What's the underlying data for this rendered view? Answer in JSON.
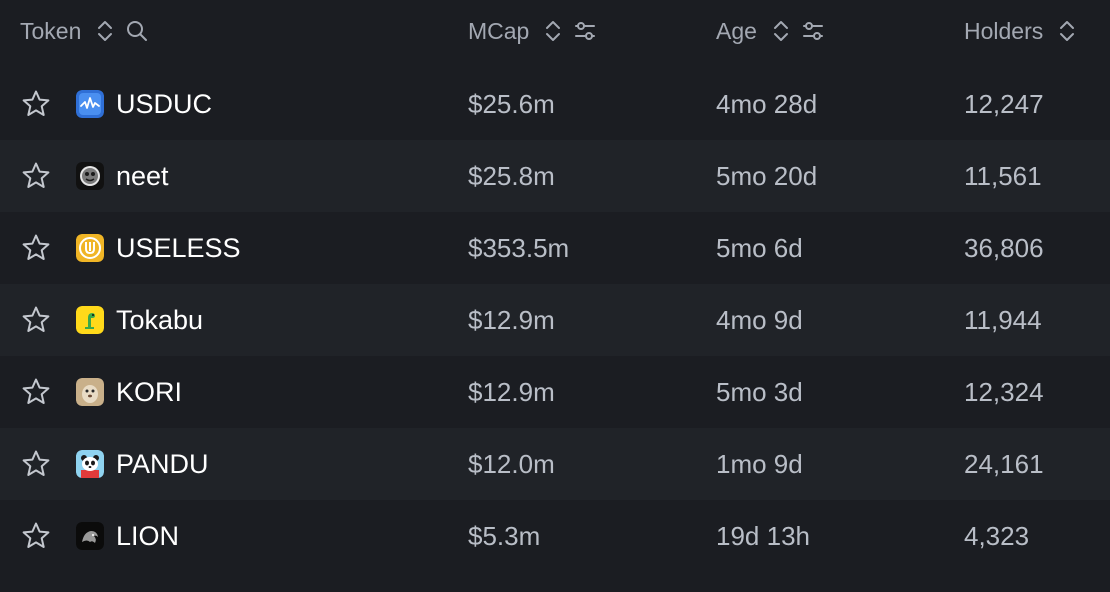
{
  "header": {
    "token_label": "Token",
    "mcap_label": "MCap",
    "age_label": "Age",
    "holders_label": "Holders"
  },
  "rows": [
    {
      "name": "USDUC",
      "mcap": "$25.6m",
      "age": "4mo 28d",
      "holders": "12,247",
      "logo_icon": "usduc-logo-icon"
    },
    {
      "name": "neet",
      "mcap": "$25.8m",
      "age": "5mo 20d",
      "holders": "11,561",
      "logo_icon": "neet-logo-icon"
    },
    {
      "name": "USELESS",
      "mcap": "$353.5m",
      "age": "5mo 6d",
      "holders": "36,806",
      "logo_icon": "useless-logo-icon"
    },
    {
      "name": "Tokabu",
      "mcap": "$12.9m",
      "age": "4mo 9d",
      "holders": "11,944",
      "logo_icon": "tokabu-logo-icon"
    },
    {
      "name": "KORI",
      "mcap": "$12.9m",
      "age": "5mo 3d",
      "holders": "12,324",
      "logo_icon": "kori-logo-icon"
    },
    {
      "name": "PANDU",
      "mcap": "$12.0m",
      "age": "1mo 9d",
      "holders": "24,161",
      "logo_icon": "pandu-logo-icon"
    },
    {
      "name": "LION",
      "mcap": "$5.3m",
      "age": "19d 13h",
      "holders": "4,323",
      "logo_icon": "lion-logo-icon"
    }
  ],
  "colors": {
    "background": "#1b1d22",
    "row_alt": "#202328",
    "header_text": "#a3a8b2",
    "cell_text": "#b9bec7",
    "name_text": "#ffffff"
  }
}
